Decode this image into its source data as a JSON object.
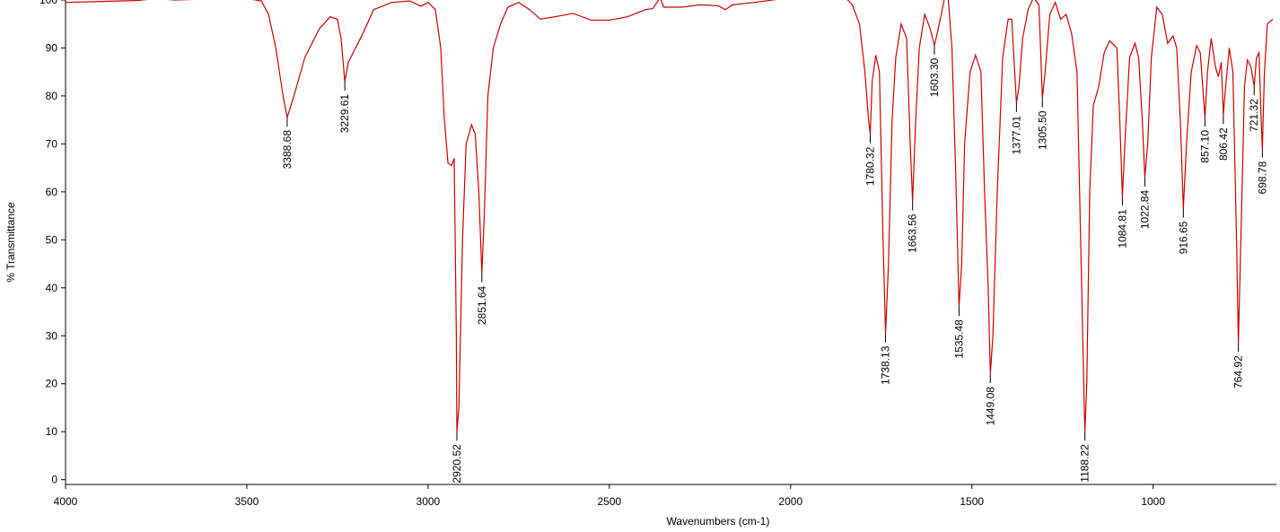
{
  "chart_data": {
    "type": "line",
    "xlabel": "Wavenumbers (cm-1)",
    "ylabel": "% Transmittance",
    "xlim": [
      4000,
      660
    ],
    "ylim": [
      -1,
      100
    ],
    "xticks": [
      4000,
      3500,
      3000,
      2500,
      2000,
      1500,
      1000
    ],
    "yticks": [
      0,
      10,
      20,
      30,
      40,
      50,
      60,
      70,
      80,
      90,
      100
    ],
    "color": "#cc0000",
    "x": [
      4000,
      3900,
      3800,
      3750,
      3700,
      3600,
      3500,
      3460,
      3440,
      3420,
      3400,
      3388.68,
      3370,
      3340,
      3300,
      3270,
      3250,
      3240,
      3229.61,
      3220,
      3200,
      3180,
      3150,
      3100,
      3050,
      3020,
      3000,
      2980,
      2965,
      2955,
      2945,
      2935,
      2928,
      2922,
      2920.52,
      2915,
      2905,
      2895,
      2880,
      2870,
      2860,
      2851.64,
      2845,
      2835,
      2820,
      2800,
      2780,
      2750,
      2720,
      2690,
      2650,
      2600,
      2550,
      2500,
      2450,
      2400,
      2380,
      2360,
      2350,
      2300,
      2250,
      2200,
      2180,
      2160,
      2100,
      2000,
      1900,
      1850,
      1830,
      1810,
      1795,
      1785,
      1780.32,
      1775,
      1765,
      1755,
      1745,
      1738.13,
      1730,
      1720,
      1710,
      1695,
      1680,
      1670,
      1663.56,
      1655,
      1645,
      1630,
      1615,
      1603.3,
      1590,
      1575,
      1565,
      1555,
      1545,
      1535.48,
      1528,
      1520,
      1505,
      1490,
      1475,
      1465,
      1455,
      1449.08,
      1442,
      1430,
      1415,
      1400,
      1390,
      1377.01,
      1370,
      1360,
      1345,
      1330,
      1315,
      1305.5,
      1298,
      1285,
      1270,
      1255,
      1240,
      1225,
      1210,
      1200,
      1190,
      1188.22,
      1183,
      1175,
      1165,
      1150,
      1135,
      1120,
      1100,
      1092,
      1084.81,
      1078,
      1065,
      1050,
      1040,
      1030,
      1022.84,
      1015,
      1005,
      990,
      975,
      960,
      945,
      935,
      925,
      916.65,
      908,
      895,
      880,
      870,
      857.1,
      850,
      840,
      828,
      820,
      812,
      806.42,
      800,
      790,
      780,
      770,
      764.92,
      758,
      748,
      740,
      730,
      721.32,
      715,
      708,
      702,
      698.78,
      693,
      685,
      670
    ],
    "values": [
      99.5,
      99.7,
      99.9,
      100.3,
      100,
      100.2,
      100.3,
      99.8,
      97,
      90,
      80,
      75.5,
      80,
      88,
      94,
      96.5,
      96,
      92,
      83,
      87,
      90,
      93,
      98,
      99.5,
      99.8,
      98.7,
      99.5,
      98,
      90,
      75,
      66,
      65.5,
      67,
      30,
      10,
      15,
      50,
      70,
      74,
      72,
      60,
      43,
      55,
      80,
      90,
      95,
      98.5,
      99.5,
      98,
      96,
      96.5,
      97.2,
      95.8,
      95.8,
      96.5,
      98,
      98.2,
      100.5,
      98.5,
      98.5,
      99,
      98.8,
      98,
      99,
      99.5,
      100.5,
      100.5,
      100.6,
      99,
      95,
      85,
      75,
      72,
      83,
      88.5,
      85,
      50,
      30.5,
      45,
      75,
      88,
      95,
      92,
      70,
      58,
      75,
      90,
      97,
      94,
      90.5,
      95,
      100.5,
      100,
      90,
      65,
      36,
      45,
      70,
      85,
      88.5,
      85,
      60,
      40,
      22,
      30,
      60,
      88,
      96,
      96,
      78.5,
      82,
      92,
      98,
      100.5,
      99,
      79.5,
      85,
      97,
      99.5,
      96,
      97,
      93,
      85,
      50,
      15,
      10,
      20,
      60,
      78,
      82,
      89,
      91.5,
      90,
      75,
      59,
      70,
      88,
      91,
      88,
      75,
      63,
      70,
      88,
      98.5,
      97,
      91,
      92.5,
      90,
      75,
      56.5,
      70,
      85,
      90.5,
      89,
      75.5,
      85,
      92,
      86,
      84,
      87,
      76,
      82,
      90,
      85,
      50,
      28.5,
      50,
      82,
      87.5,
      86,
      82,
      88,
      89,
      75,
      69,
      85,
      95,
      96
    ],
    "annotations": [
      {
        "x": 3388.68,
        "y": 75.5,
        "label": "3388.68"
      },
      {
        "x": 3229.61,
        "y": 83,
        "label": "3229.61"
      },
      {
        "x": 2920.52,
        "y": 10,
        "label": "2920.52"
      },
      {
        "x": 2851.64,
        "y": 43,
        "label": "2851.64"
      },
      {
        "x": 1780.32,
        "y": 72,
        "label": "1780.32"
      },
      {
        "x": 1738.13,
        "y": 30.5,
        "label": "1738.13"
      },
      {
        "x": 1663.56,
        "y": 58,
        "label": "1663.56"
      },
      {
        "x": 1603.3,
        "y": 90.5,
        "label": "1603.30"
      },
      {
        "x": 1535.48,
        "y": 36,
        "label": "1535.48"
      },
      {
        "x": 1449.08,
        "y": 22,
        "label": "1449.08"
      },
      {
        "x": 1377.01,
        "y": 78.5,
        "label": "1377.01"
      },
      {
        "x": 1305.5,
        "y": 79.5,
        "label": "1305.50"
      },
      {
        "x": 1188.22,
        "y": 10,
        "label": "1188.22"
      },
      {
        "x": 1084.81,
        "y": 59,
        "label": "1084.81"
      },
      {
        "x": 1022.84,
        "y": 63,
        "label": "1022.84"
      },
      {
        "x": 916.65,
        "y": 56.5,
        "label": "916.65"
      },
      {
        "x": 857.1,
        "y": 75.5,
        "label": "857.10"
      },
      {
        "x": 806.42,
        "y": 76,
        "label": "806.42"
      },
      {
        "x": 764.92,
        "y": 28.5,
        "label": "764.92"
      },
      {
        "x": 721.32,
        "y": 82,
        "label": "721.32"
      },
      {
        "x": 698.78,
        "y": 69,
        "label": "698.78"
      }
    ]
  }
}
